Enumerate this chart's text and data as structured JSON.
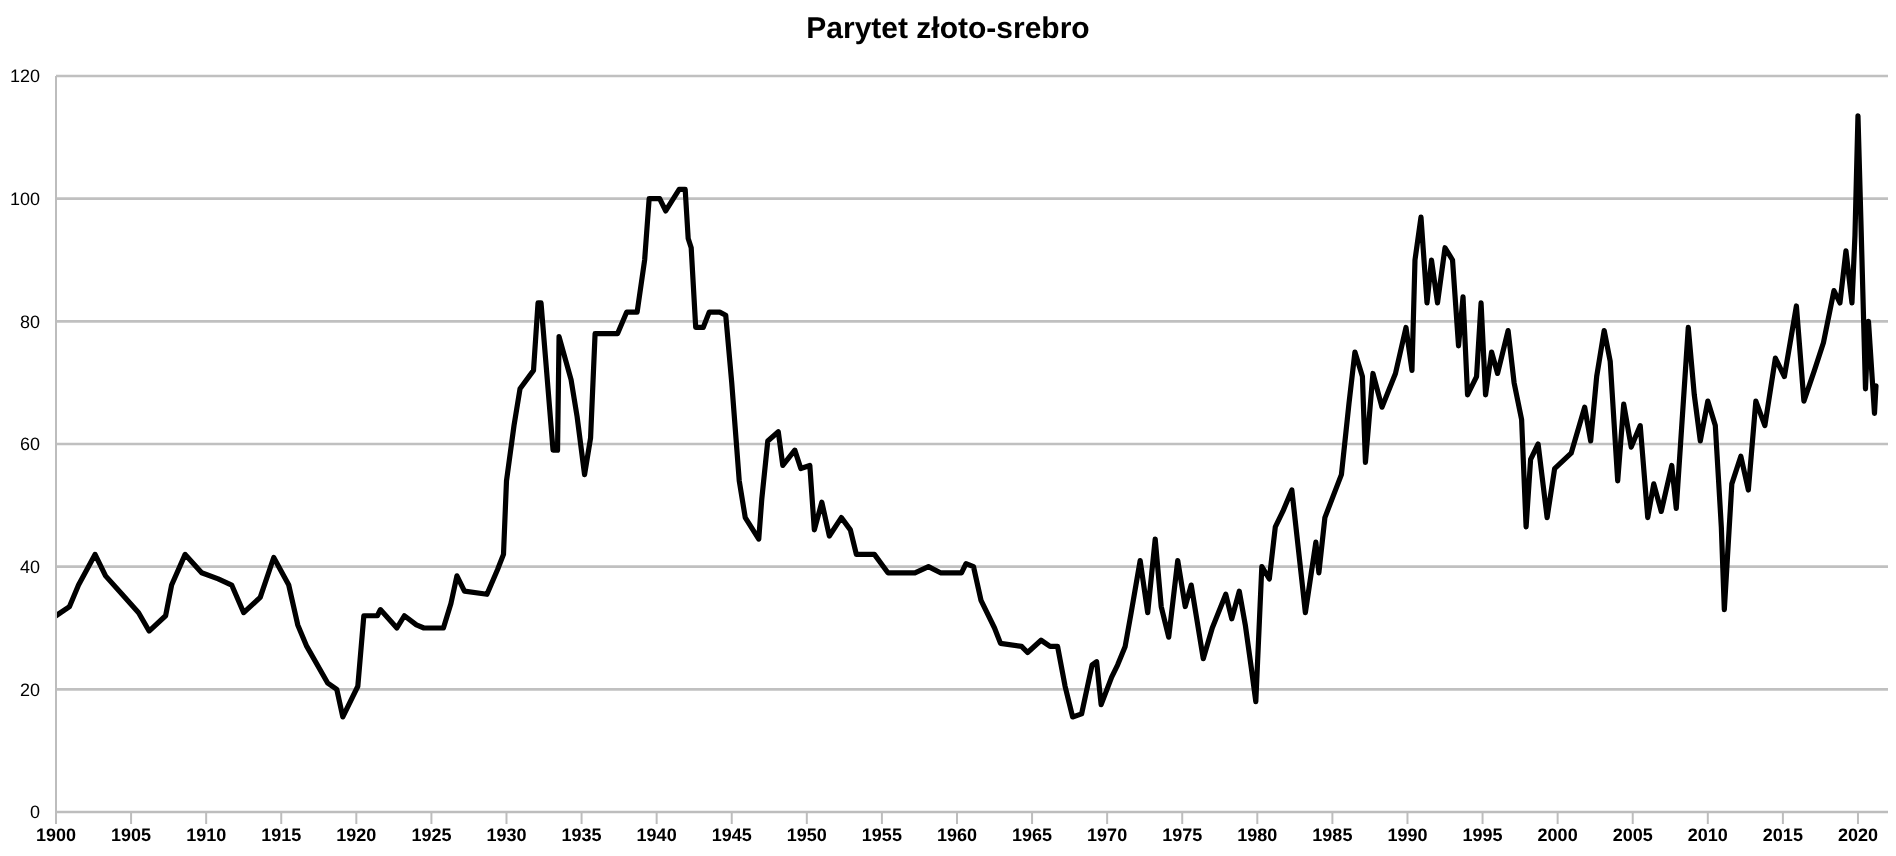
{
  "chart_data": {
    "type": "line",
    "title": "Parytet złoto-srebro",
    "x": [
      1900,
      1900.9,
      1901.5,
      1902.6,
      1903.3,
      1904.4,
      1905.5,
      1906.2,
      1907.3,
      1907.7,
      1908.6,
      1909.7,
      1910.8,
      1911.7,
      1912.5,
      1913.6,
      1914.5,
      1915.5,
      1916.1,
      1916.7,
      1918.1,
      1918.7,
      1919.1,
      1920.1,
      1920.5,
      1921.4,
      1921.6,
      1922.7,
      1923.2,
      1924,
      1924.5,
      1925.8,
      1926.3,
      1926.7,
      1927.2,
      1928.7,
      1929.4,
      1929.8,
      1930,
      1930.5,
      1930.9,
      1931.8,
      1932.1,
      1932.3,
      1932.6,
      1933.1,
      1933.4,
      1933.5,
      1934.3,
      1934.7,
      1935.2,
      1935.6,
      1935.9,
      1937.4,
      1938,
      1938.7,
      1939.2,
      1939.5,
      1940.2,
      1940.6,
      1941.5,
      1941.9,
      1942.1,
      1942.3,
      1942.6,
      1943.1,
      1943.5,
      1944.2,
      1944.6,
      1945,
      1945.5,
      1945.9,
      1946.8,
      1947,
      1947.4,
      1948.1,
      1948.4,
      1949.2,
      1949.6,
      1950.2,
      1950.5,
      1951,
      1951.5,
      1952.3,
      1952.9,
      1953.3,
      1954.5,
      1955.4,
      1957.2,
      1958.1,
      1958.9,
      1960.3,
      1960.6,
      1961.1,
      1961.6,
      1962.5,
      1962.9,
      1964.3,
      1964.7,
      1965.6,
      1966.2,
      1966.7,
      1967.2,
      1967.7,
      1968.3,
      1969,
      1969.3,
      1969.6,
      1970.3,
      1970.7,
      1971.2,
      1971.6,
      1972.2,
      1972.7,
      1973.2,
      1973.6,
      1974.1,
      1974.7,
      1975.2,
      1975.6,
      1976.4,
      1977,
      1977.9,
      1978.3,
      1978.8,
      1979.2,
      1979.6,
      1979.9,
      1980.3,
      1980.8,
      1981.2,
      1981.7,
      1982.3,
      1983,
      1983.2,
      1983.9,
      1984.1,
      1984.5,
      1985.6,
      1986.1,
      1986.5,
      1987,
      1987.2,
      1987.7,
      1988.3,
      1989.2,
      1989.9,
      1990.3,
      1990.5,
      1990.9,
      1991.3,
      1991.6,
      1992,
      1992.5,
      1993,
      1993.4,
      1993.7,
      1994,
      1994.6,
      1994.9,
      1995.2,
      1995.6,
      1996,
      1996.7,
      1997.1,
      1997.6,
      1997.9,
      1998.2,
      1998.7,
      1999.3,
      1999.8,
      2000.9,
      2001.8,
      2002.2,
      2002.6,
      2003.1,
      2003.5,
      2004,
      2004.4,
      2004.9,
      2005.5,
      2006,
      2006.4,
      2006.9,
      2007.6,
      2007.9,
      2008.7,
      2009.1,
      2009.5,
      2010,
      2010.5,
      2010.9,
      2011.1,
      2011.6,
      2012.2,
      2012.7,
      2013.2,
      2013.8,
      2014.5,
      2015.1,
      2015.9,
      2016.4,
      2017.1,
      2017.7,
      2018.4,
      2018.8,
      2019.2,
      2019.6,
      2019.8,
      2020,
      2020.2,
      2020.5,
      2020.7,
      2021.1,
      2021.2
    ],
    "series": [
      {
        "color": "#000000",
        "values": [
          32,
          33.5,
          37,
          42,
          38.5,
          35.5,
          32.5,
          29.5,
          32,
          37,
          42,
          39,
          38,
          37,
          32.5,
          35,
          41.5,
          37,
          30.5,
          27,
          21,
          20,
          15.5,
          20.5,
          32,
          32,
          33,
          30,
          32,
          30.5,
          30,
          30,
          34,
          38.5,
          36,
          35.5,
          39.5,
          42,
          54,
          63,
          69,
          72,
          83,
          83,
          74,
          59,
          59,
          77.5,
          70.5,
          64.5,
          55,
          61,
          78,
          78,
          81.5,
          81.5,
          90,
          100,
          100,
          98,
          101.5,
          101.5,
          93.5,
          92,
          79,
          79,
          81.5,
          81.5,
          81,
          70,
          54,
          48,
          44.5,
          51,
          60.5,
          62,
          56.5,
          59,
          56,
          56.5,
          46,
          50.5,
          45,
          48,
          46,
          42,
          42,
          39,
          39,
          40,
          39,
          39,
          40.5,
          40,
          34.5,
          30,
          27.5,
          27,
          26,
          28,
          27,
          27,
          20.5,
          15.5,
          16,
          24,
          24.5,
          17.5,
          22,
          24,
          27,
          32.5,
          41,
          32.5,
          44.5,
          33.5,
          28.5,
          41,
          33.5,
          37,
          25,
          30,
          35.5,
          31.5,
          36,
          30.5,
          23.5,
          18,
          40,
          38,
          46.5,
          49,
          52.5,
          37,
          32.5,
          44,
          39,
          48,
          55,
          66.5,
          75,
          71,
          57,
          71.5,
          66,
          71.5,
          79,
          72,
          90,
          97,
          83,
          90,
          83,
          92,
          90,
          76,
          84,
          68,
          71,
          83,
          68,
          75,
          71.5,
          78.5,
          70,
          64,
          46.5,
          57.5,
          60,
          48,
          56,
          58.5,
          66,
          60.5,
          71,
          78.5,
          73.5,
          54,
          66.5,
          59.5,
          63,
          48,
          53.5,
          49,
          56.5,
          49.5,
          79,
          68,
          60.5,
          67,
          63,
          46.5,
          33,
          53.5,
          58,
          52.5,
          67,
          63,
          74,
          71,
          82.5,
          67,
          72,
          76.5,
          85,
          83,
          91.5,
          83,
          94,
          113.5,
          96,
          69,
          80,
          65,
          69.5
        ]
      }
    ],
    "xlim": [
      1900,
      2022
    ],
    "xticks": [
      1900,
      1905,
      1910,
      1915,
      1920,
      1925,
      1930,
      1935,
      1940,
      1945,
      1950,
      1955,
      1960,
      1965,
      1970,
      1975,
      1980,
      1985,
      1990,
      1995,
      2000,
      2005,
      2010,
      2015,
      2020
    ],
    "ylim": [
      0,
      120
    ],
    "yticks": [
      0,
      20,
      40,
      60,
      80,
      100,
      120
    ],
    "grid": "y",
    "marker": "none",
    "line_style": "solid",
    "legend": false
  }
}
